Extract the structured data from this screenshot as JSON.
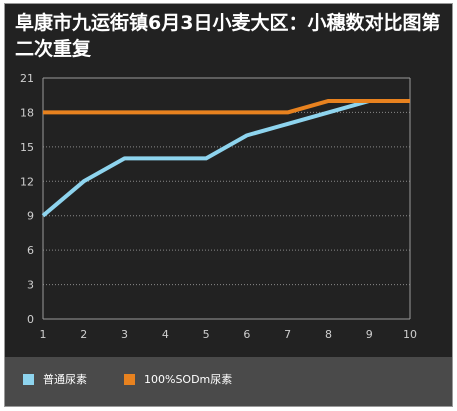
{
  "chart_data": {
    "type": "line",
    "title": "阜康市九运街镇6月3日小麦大区：小穗数对比图第二次重复",
    "xlabel": "",
    "ylabel": "",
    "x": [
      1,
      2,
      3,
      4,
      5,
      6,
      7,
      8,
      9,
      10
    ],
    "xlim": [
      1,
      10
    ],
    "ylim": [
      0,
      21
    ],
    "yticks": [
      0,
      3,
      6,
      9,
      12,
      15,
      18,
      21
    ],
    "grid": true,
    "legend_position": "bottom",
    "series": [
      {
        "name": "普通尿素",
        "color": "#8ed4ee",
        "values": [
          9,
          12,
          14,
          14,
          14,
          16,
          17,
          18,
          19,
          19
        ]
      },
      {
        "name": "100%SODm尿素",
        "color": "#e8821f",
        "values": [
          18,
          18,
          18,
          18,
          18,
          18,
          18,
          19,
          19,
          19
        ]
      }
    ]
  },
  "colors": {
    "background": "#222222",
    "legend_background": "#4a4a4a",
    "axis": "#9a9a9a",
    "grid": "#8a8a8a"
  }
}
